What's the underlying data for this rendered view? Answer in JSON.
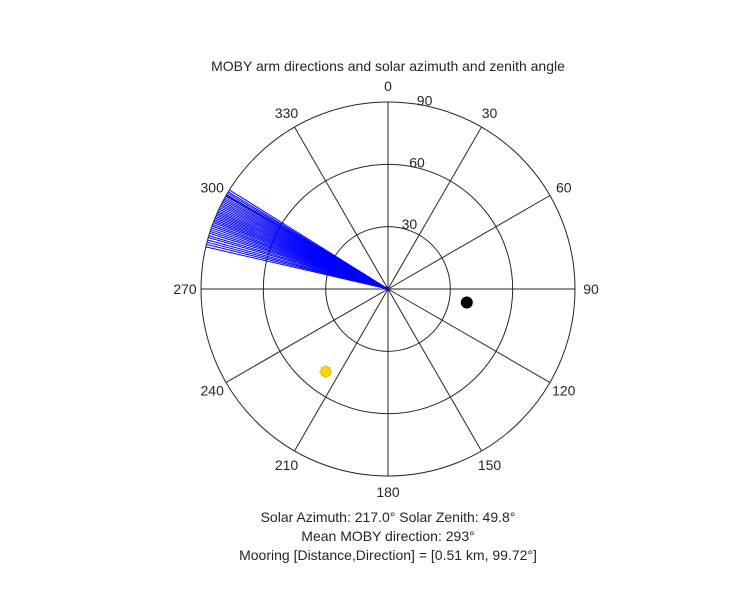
{
  "chart_data": {
    "type": "polar",
    "title": "MOBY arm directions and solar azimuth and zenith angle",
    "angular_axis": {
      "zero_location": "top",
      "direction": "clockwise",
      "tick_labels": [
        "0",
        "30",
        "60",
        "90",
        "120",
        "150",
        "180",
        "210",
        "240",
        "270",
        "300",
        "330"
      ]
    },
    "radial_axis": {
      "rlim": [
        0,
        90
      ],
      "ticks": [
        30,
        60,
        90
      ],
      "tick_labels": [
        "30",
        "60",
        "90"
      ]
    },
    "grid": true,
    "series": [
      {
        "kind": "arm-lines",
        "color": "#0000ff",
        "r": 90,
        "azimuths_deg": [
          283.0,
          283.8,
          284.5,
          285.2,
          286.0,
          286.6,
          287.3,
          287.9,
          288.5,
          289.1,
          289.7,
          290.2,
          290.8,
          291.3,
          291.8,
          292.3,
          292.8,
          293.3,
          293.8,
          294.3,
          294.8,
          295.3,
          295.8,
          296.3,
          296.8,
          297.3,
          297.8,
          298.3,
          298.8,
          299.3,
          299.8,
          300.3,
          300.8,
          301.3,
          302.0
        ]
      },
      {
        "kind": "sun",
        "color": "#ffd700",
        "azimuth_deg": 217.0,
        "zenith_deg": 49.8
      },
      {
        "kind": "mooring",
        "color": "#000000",
        "azimuth_deg": 99.72,
        "r": 38.5
      }
    ],
    "annotations": [
      "Solar Azimuth: 217.0°    Solar Zenith: 49.8°",
      "Mean MOBY direction: 293°",
      "Mooring [Distance,Direction] = [0.51 km, 99.72°]"
    ]
  }
}
